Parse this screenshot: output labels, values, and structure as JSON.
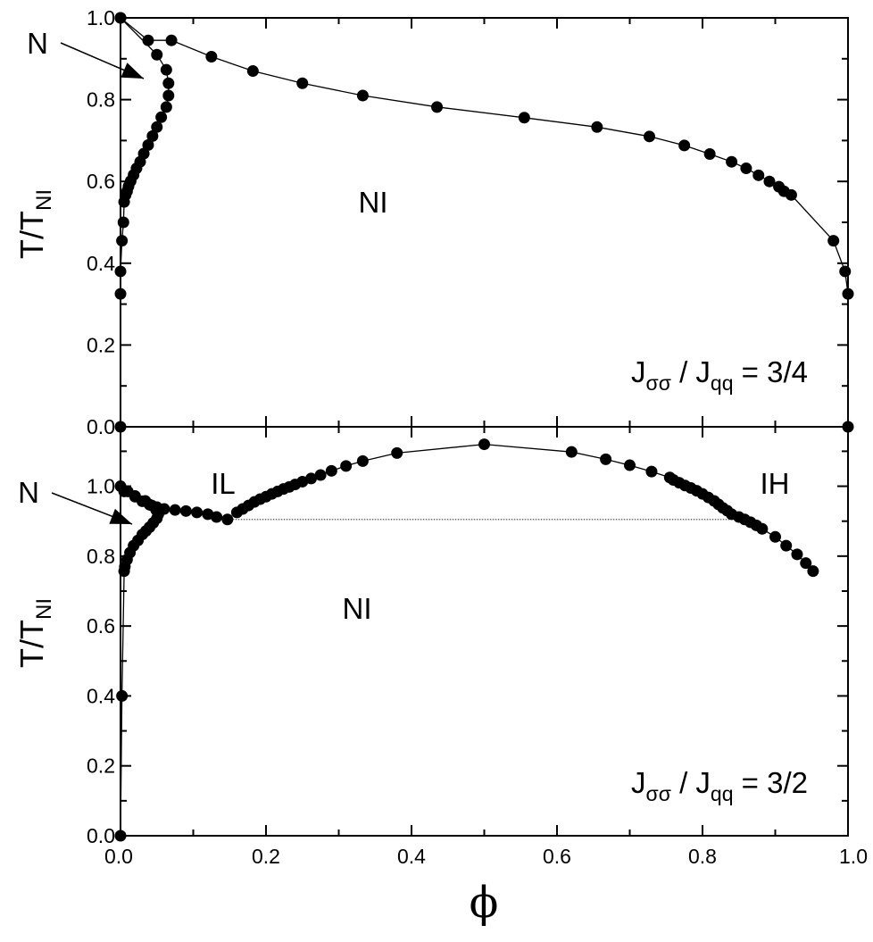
{
  "chart_data": [
    {
      "type": "scatter",
      "panel": "top",
      "xlim": [
        0.0,
        1.0
      ],
      "ylim": [
        0.0,
        1.0
      ],
      "ylabel": {
        "main": "T/T",
        "sub": "NI"
      },
      "y_ticks": [
        "0.0",
        "0.2",
        "0.4",
        "0.6",
        "0.8",
        "1.0"
      ],
      "annotation": {
        "main_a": "J",
        "sub_a": "σσ",
        "main_b": " / J",
        "sub_b": "qq",
        "tail": " = 3/4"
      },
      "region_labels": [
        "N",
        "NI"
      ],
      "series": [
        {
          "x": [
            0.0,
            0.038,
            0.07,
            0.125,
            0.182,
            0.25,
            0.333,
            0.435,
            0.555,
            0.655,
            0.727,
            0.775,
            0.81,
            0.84,
            0.86,
            0.877,
            0.892,
            0.905,
            0.912,
            0.922,
            0.98,
            0.996,
            1.0
          ],
          "y": [
            1.0,
            0.945,
            0.945,
            0.905,
            0.87,
            0.84,
            0.81,
            0.782,
            0.756,
            0.733,
            0.71,
            0.688,
            0.667,
            0.648,
            0.632,
            0.615,
            0.6,
            0.587,
            0.576,
            0.567,
            0.455,
            0.38,
            0.325
          ]
        },
        {
          "x": [
            0.0,
            0.05,
            0.063,
            0.066,
            0.066,
            0.063,
            0.056,
            0.05,
            0.044,
            0.038,
            0.032,
            0.027,
            0.022,
            0.018,
            0.014,
            0.011,
            0.009,
            0.007,
            0.005,
            0.004,
            0.002,
            0.0,
            0.0,
            0.0
          ],
          "y": [
            1.0,
            0.91,
            0.873,
            0.84,
            0.81,
            0.782,
            0.757,
            0.733,
            0.711,
            0.689,
            0.668,
            0.648,
            0.632,
            0.616,
            0.601,
            0.588,
            0.576,
            0.567,
            0.55,
            0.5,
            0.455,
            0.38,
            0.325,
            0.0
          ]
        },
        {
          "x": [
            1.0
          ],
          "y": [
            0.0
          ]
        }
      ]
    },
    {
      "type": "scatter",
      "panel": "bottom",
      "xlim": [
        0.0,
        1.0
      ],
      "ylim": [
        0.0,
        1.17
      ],
      "xlabel": "ϕ",
      "ylabel": {
        "main": "T/T",
        "sub": "NI"
      },
      "x_ticks": [
        "0.0",
        "0.2",
        "0.4",
        "0.6",
        "0.8",
        "1.0"
      ],
      "y_ticks": [
        "0.0",
        "0.2",
        "0.4",
        "0.6",
        "0.8",
        "1.0"
      ],
      "annotation": {
        "main_a": "J",
        "sub_a": "σσ",
        "main_b": " / J",
        "sub_b": "qq",
        "tail": " = 3/2"
      },
      "region_labels": [
        "N",
        "IL",
        "IH",
        "NI"
      ],
      "tie_line": {
        "x": [
          0.147,
          0.845
        ],
        "y": [
          0.905,
          0.905
        ]
      },
      "series": [
        {
          "x": [
            0.0,
            0.01,
            0.02,
            0.03,
            0.04,
            0.05,
            0.06,
            0.075,
            0.09,
            0.105,
            0.12,
            0.132,
            0.147
          ],
          "y": [
            1.0,
            0.985,
            0.97,
            0.957,
            0.947,
            0.94,
            0.935,
            0.932,
            0.929,
            0.925,
            0.92,
            0.912,
            0.905
          ]
        },
        {
          "x": [
            0.005,
            0.02,
            0.034,
            0.043,
            0.049,
            0.052,
            0.05,
            0.045,
            0.04,
            0.035,
            0.03,
            0.024,
            0.018,
            0.013,
            0.009,
            0.006,
            0.005,
            0.002,
            0.0
          ],
          "y": [
            0.985,
            0.972,
            0.958,
            0.945,
            0.932,
            0.92,
            0.908,
            0.895,
            0.883,
            0.872,
            0.862,
            0.845,
            0.83,
            0.81,
            0.79,
            0.77,
            0.757,
            0.4,
            0.0
          ]
        },
        {
          "x": [
            0.16,
            0.168,
            0.176,
            0.184,
            0.192,
            0.2,
            0.208,
            0.216,
            0.224,
            0.232,
            0.24,
            0.25,
            0.262,
            0.275,
            0.29,
            0.31,
            0.333,
            0.38,
            0.5,
            0.62,
            0.667,
            0.7,
            0.73,
            0.755,
            0.76,
            0.768,
            0.776,
            0.784,
            0.792,
            0.8,
            0.808,
            0.816,
            0.822,
            0.828,
            0.834,
            0.84,
            0.85,
            0.858,
            0.866,
            0.874,
            0.882,
            0.9,
            0.915,
            0.93,
            0.942,
            0.952
          ],
          "y": [
            0.925,
            0.935,
            0.945,
            0.955,
            0.963,
            0.97,
            0.978,
            0.985,
            0.992,
            0.998,
            1.005,
            1.013,
            1.022,
            1.032,
            1.044,
            1.058,
            1.072,
            1.095,
            1.12,
            1.098,
            1.077,
            1.06,
            1.042,
            1.025,
            1.018,
            1.01,
            1.002,
            0.995,
            0.987,
            0.978,
            0.968,
            0.958,
            0.948,
            0.938,
            0.93,
            0.92,
            0.912,
            0.905,
            0.897,
            0.888,
            0.878,
            0.855,
            0.83,
            0.805,
            0.78,
            0.757
          ]
        }
      ]
    }
  ]
}
